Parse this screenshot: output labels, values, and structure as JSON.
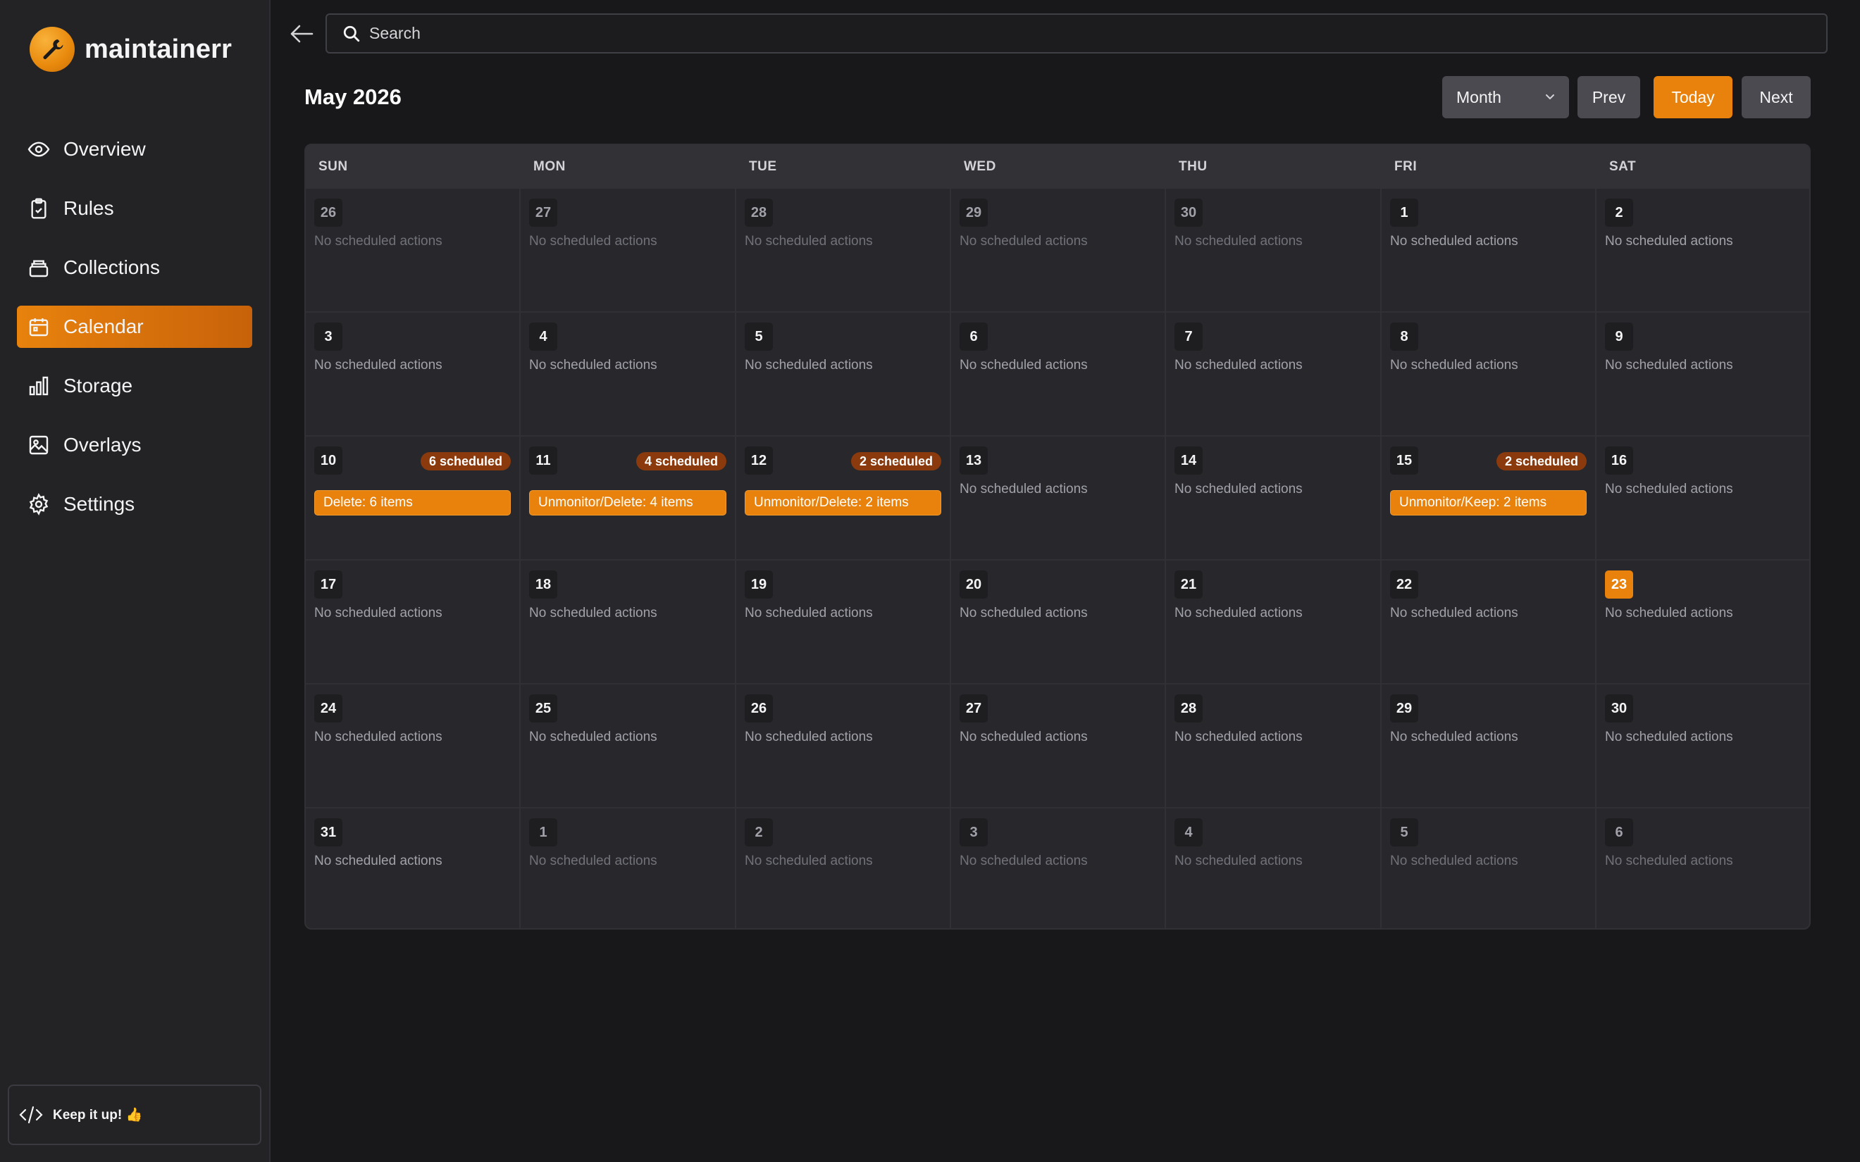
{
  "app": {
    "name": "maintainerr"
  },
  "sidebar": {
    "items": [
      {
        "label": "Overview",
        "icon": "eye-icon",
        "active": false
      },
      {
        "label": "Rules",
        "icon": "clipboard-check-icon",
        "active": false
      },
      {
        "label": "Collections",
        "icon": "collection-stack-icon",
        "active": false
      },
      {
        "label": "Calendar",
        "icon": "calendar-icon",
        "active": true
      },
      {
        "label": "Storage",
        "icon": "bar-chart-icon",
        "active": false
      },
      {
        "label": "Overlays",
        "icon": "image-icon",
        "active": false
      },
      {
        "label": "Settings",
        "icon": "gear-icon",
        "active": false
      }
    ],
    "footer": {
      "text": "Keep it up! 👍",
      "icon": "code-icon"
    }
  },
  "search": {
    "placeholder": "Search"
  },
  "calendar": {
    "title": "May 2026",
    "view": "Month",
    "prev_label": "Prev",
    "today_label": "Today",
    "next_label": "Next",
    "weekdays": [
      "SUN",
      "MON",
      "TUE",
      "WED",
      "THU",
      "FRI",
      "SAT"
    ],
    "empty_text": "No scheduled actions",
    "today_day": 23,
    "colors": {
      "accent": "#e8820d",
      "badge": "#8a3a0c"
    },
    "days": [
      {
        "day": "26",
        "out": true
      },
      {
        "day": "27",
        "out": true
      },
      {
        "day": "28",
        "out": true
      },
      {
        "day": "29",
        "out": true
      },
      {
        "day": "30",
        "out": true
      },
      {
        "day": "1"
      },
      {
        "day": "2"
      },
      {
        "day": "3"
      },
      {
        "day": "4"
      },
      {
        "day": "5"
      },
      {
        "day": "6"
      },
      {
        "day": "7"
      },
      {
        "day": "8"
      },
      {
        "day": "9"
      },
      {
        "day": "10",
        "badge": "6 scheduled",
        "event": "Delete: 6 items"
      },
      {
        "day": "11",
        "badge": "4 scheduled",
        "event": "Unmonitor/Delete: 4 items"
      },
      {
        "day": "12",
        "badge": "2 scheduled",
        "event": "Unmonitor/Delete: 2 items"
      },
      {
        "day": "13"
      },
      {
        "day": "14"
      },
      {
        "day": "15",
        "badge": "2 scheduled",
        "event": "Unmonitor/Keep: 2 items"
      },
      {
        "day": "16"
      },
      {
        "day": "17"
      },
      {
        "day": "18"
      },
      {
        "day": "19"
      },
      {
        "day": "20"
      },
      {
        "day": "21"
      },
      {
        "day": "22"
      },
      {
        "day": "23",
        "today": true
      },
      {
        "day": "24"
      },
      {
        "day": "25"
      },
      {
        "day": "26"
      },
      {
        "day": "27"
      },
      {
        "day": "28"
      },
      {
        "day": "29"
      },
      {
        "day": "30"
      },
      {
        "day": "31"
      },
      {
        "day": "1",
        "out": true
      },
      {
        "day": "2",
        "out": true
      },
      {
        "day": "3",
        "out": true
      },
      {
        "day": "4",
        "out": true
      },
      {
        "day": "5",
        "out": true
      },
      {
        "day": "6",
        "out": true
      }
    ]
  }
}
